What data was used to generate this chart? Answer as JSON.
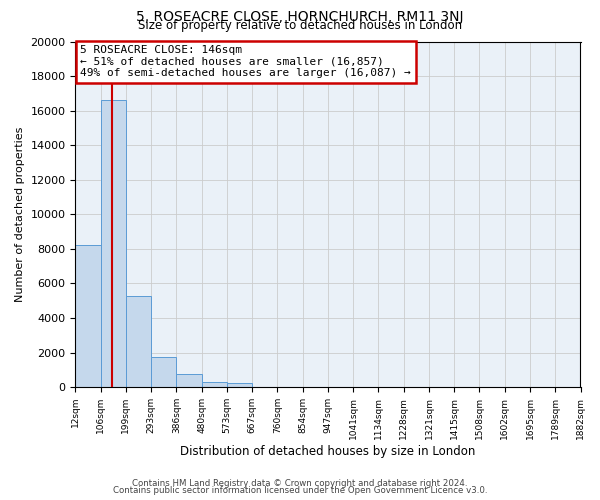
{
  "title": "5, ROSEACRE CLOSE, HORNCHURCH, RM11 3NJ",
  "subtitle": "Size of property relative to detached houses in London",
  "xlabel": "Distribution of detached houses by size in London",
  "ylabel": "Number of detached properties",
  "bar_values": [
    8200,
    16600,
    5300,
    1750,
    750,
    300,
    250,
    0,
    0,
    0,
    0,
    0,
    0,
    0,
    0,
    0,
    0,
    0,
    0,
    0
  ],
  "bar_labels": [
    "12sqm",
    "106sqm",
    "199sqm",
    "293sqm",
    "386sqm",
    "480sqm",
    "573sqm",
    "667sqm",
    "760sqm",
    "854sqm",
    "947sqm",
    "1041sqm",
    "1134sqm",
    "1228sqm",
    "1321sqm",
    "1415sqm",
    "1508sqm",
    "1602sqm",
    "1695sqm",
    "1789sqm",
    "1882sqm"
  ],
  "bar_color": "#c5d8ec",
  "bar_edge_color": "#5b9bd5",
  "vline_color": "#cc0000",
  "annotation_title": "5 ROSEACRE CLOSE: 146sqm",
  "annotation_line1": "← 51% of detached houses are smaller (16,857)",
  "annotation_line2": "49% of semi-detached houses are larger (16,087) →",
  "annotation_box_color": "#ffffff",
  "annotation_border_color": "#cc0000",
  "ylim": [
    0,
    20000
  ],
  "yticks": [
    0,
    2000,
    4000,
    6000,
    8000,
    10000,
    12000,
    14000,
    16000,
    18000,
    20000
  ],
  "footer1": "Contains HM Land Registry data © Crown copyright and database right 2024.",
  "footer2": "Contains public sector information licensed under the Open Government Licence v3.0.",
  "background_color": "#ffffff",
  "grid_color": "#cccccc",
  "plot_bg_color": "#eaf1f8"
}
